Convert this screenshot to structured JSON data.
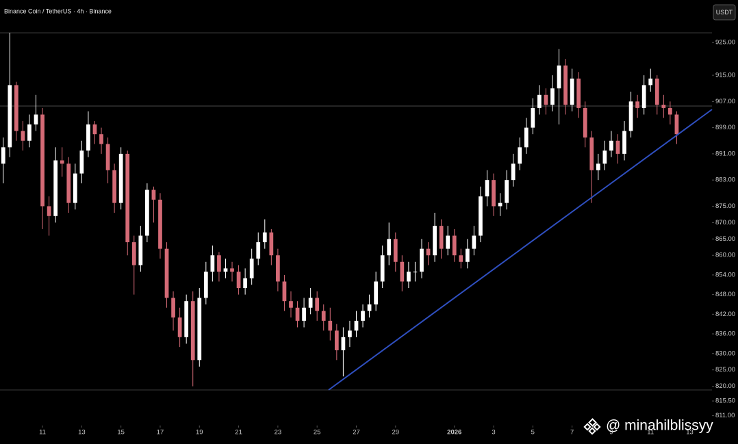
{
  "chart_data": {
    "type": "candlestick",
    "title": "Binance Coin / TetherUS · 4h · Binance",
    "currency": "USDT",
    "watermark": "@ minahilblissyy",
    "up_color": "#ffffff",
    "down_color": "#d46a76",
    "open": [
      888,
      893,
      912,
      898,
      895,
      900,
      903,
      875,
      872,
      889,
      888,
      876,
      885,
      892,
      900,
      897,
      894,
      886,
      876,
      891,
      864,
      857,
      866,
      880,
      877,
      862,
      847,
      841,
      835,
      846,
      828,
      847,
      855,
      860,
      855,
      856,
      855,
      850,
      853,
      859,
      864,
      867,
      860,
      852,
      846,
      844,
      840,
      844,
      847,
      843,
      840,
      837,
      831,
      835,
      837,
      840,
      843,
      845,
      852,
      860,
      865,
      858,
      852,
      855,
      855,
      862,
      860,
      869,
      862,
      866,
      860,
      858,
      862,
      866,
      878,
      883,
      875,
      876,
      883,
      888,
      893,
      899,
      905,
      909,
      906,
      911,
      918,
      906,
      914,
      905,
      896,
      886,
      888,
      892,
      895,
      891,
      898,
      907,
      905,
      912,
      914,
      906,
      905,
      903
    ],
    "high": [
      896,
      928,
      913,
      901,
      903,
      909,
      905,
      878,
      893,
      893,
      890,
      888,
      895,
      904,
      901,
      899,
      896,
      888,
      893,
      892,
      866,
      869,
      882,
      881,
      879,
      864,
      849,
      844,
      848,
      849,
      850,
      858,
      863,
      861,
      859,
      858,
      857,
      856,
      862,
      867,
      871,
      868,
      862,
      854,
      849,
      846,
      847,
      850,
      849,
      845,
      844,
      839,
      838,
      840,
      843,
      845,
      848,
      855,
      863,
      870,
      867,
      860,
      858,
      858,
      865,
      864,
      873,
      871,
      869,
      868,
      862,
      865,
      869,
      881,
      886,
      885,
      879,
      886,
      891,
      896,
      902,
      908,
      912,
      911,
      915,
      923,
      920,
      917,
      916,
      907,
      898,
      891,
      895,
      898,
      897,
      901,
      910,
      909,
      915,
      917,
      915,
      909,
      907,
      904
    ],
    "low": [
      882,
      890,
      895,
      892,
      893,
      898,
      868,
      866,
      870,
      884,
      873,
      874,
      882,
      890,
      894,
      891,
      882,
      873,
      874,
      860,
      848,
      855,
      864,
      870,
      859,
      844,
      837,
      832,
      833,
      820,
      826,
      845,
      852,
      852,
      853,
      852,
      848,
      848,
      851,
      857,
      862,
      857,
      849,
      843,
      841,
      838,
      838,
      842,
      840,
      837,
      834,
      828,
      823,
      832,
      835,
      838,
      841,
      843,
      850,
      857,
      855,
      849,
      850,
      852,
      853,
      857,
      858,
      859,
      860,
      858,
      856,
      856,
      860,
      864,
      875,
      872,
      872,
      874,
      881,
      886,
      891,
      897,
      903,
      903,
      904,
      900,
      903,
      904,
      902,
      893,
      876,
      883,
      886,
      890,
      888,
      889,
      896,
      902,
      903,
      910,
      903,
      902,
      900,
      894
    ],
    "close": [
      893,
      912,
      898,
      895,
      900,
      903,
      875,
      872,
      889,
      888,
      876,
      885,
      892,
      900,
      897,
      894,
      886,
      876,
      891,
      864,
      857,
      866,
      880,
      877,
      862,
      847,
      841,
      835,
      846,
      828,
      847,
      855,
      860,
      855,
      856,
      855,
      850,
      853,
      859,
      864,
      867,
      860,
      852,
      846,
      844,
      840,
      844,
      847,
      843,
      840,
      837,
      831,
      835,
      837,
      840,
      843,
      845,
      852,
      860,
      865,
      858,
      852,
      855,
      855,
      862,
      860,
      869,
      862,
      866,
      860,
      858,
      862,
      866,
      878,
      883,
      875,
      876,
      883,
      888,
      893,
      899,
      905,
      909,
      906,
      911,
      918,
      906,
      914,
      905,
      896,
      886,
      888,
      892,
      895,
      891,
      898,
      907,
      905,
      912,
      914,
      906,
      905,
      903,
      897
    ],
    "xlim": [
      -0.5,
      108.4
    ],
    "xticks": [
      {
        "value": 6,
        "label": "11"
      },
      {
        "value": 12,
        "label": "13"
      },
      {
        "value": 18,
        "label": "15"
      },
      {
        "value": 24,
        "label": "17"
      },
      {
        "value": 30,
        "label": "19"
      },
      {
        "value": 36,
        "label": "21"
      },
      {
        "value": 42,
        "label": "23"
      },
      {
        "value": 48,
        "label": "25"
      },
      {
        "value": 54,
        "label": "27"
      },
      {
        "value": 60,
        "label": "29"
      },
      {
        "value": 69,
        "label": "2026"
      },
      {
        "value": 75,
        "label": "3"
      },
      {
        "value": 81,
        "label": "5"
      },
      {
        "value": 87,
        "label": "7"
      },
      {
        "value": 93,
        "label": "9"
      },
      {
        "value": 99,
        "label": "11"
      },
      {
        "value": 105,
        "label": "13"
      }
    ],
    "ylim": [
      808,
      938
    ],
    "yticks": [
      {
        "value": 925,
        "label": "925.00"
      },
      {
        "value": 915,
        "label": "915.00"
      },
      {
        "value": 907,
        "label": "907.00"
      },
      {
        "value": 899,
        "label": "899.00"
      },
      {
        "value": 891,
        "label": "891.00"
      },
      {
        "value": 883,
        "label": "883.00"
      },
      {
        "value": 875,
        "label": "875.00"
      },
      {
        "value": 870,
        "label": "870.00"
      },
      {
        "value": 865,
        "label": "865.00"
      },
      {
        "value": 860,
        "label": "860.00"
      },
      {
        "value": 854,
        "label": "854.00"
      },
      {
        "value": 848,
        "label": "848.00"
      },
      {
        "value": 842,
        "label": "842.00"
      },
      {
        "value": 836,
        "label": "836.00"
      },
      {
        "value": 830,
        "label": "830.00"
      },
      {
        "value": 825,
        "label": "825.00"
      },
      {
        "value": 820,
        "label": "820.00"
      },
      {
        "value": 815.5,
        "label": "815.50"
      },
      {
        "value": 811,
        "label": "811.00"
      }
    ]
  }
}
